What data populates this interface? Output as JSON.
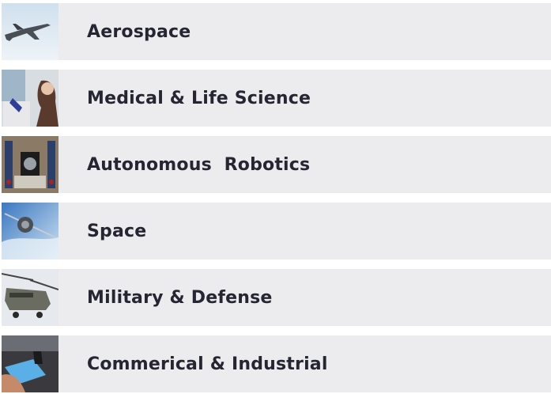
{
  "items": [
    {
      "label": "Aerospace"
    },
    {
      "label": "Medical & Life Science"
    },
    {
      "label": "Autonomous  Robotics"
    },
    {
      "label": "Space"
    },
    {
      "label": "Military & Defense"
    },
    {
      "label": "Commerical & Industrial"
    }
  ]
}
